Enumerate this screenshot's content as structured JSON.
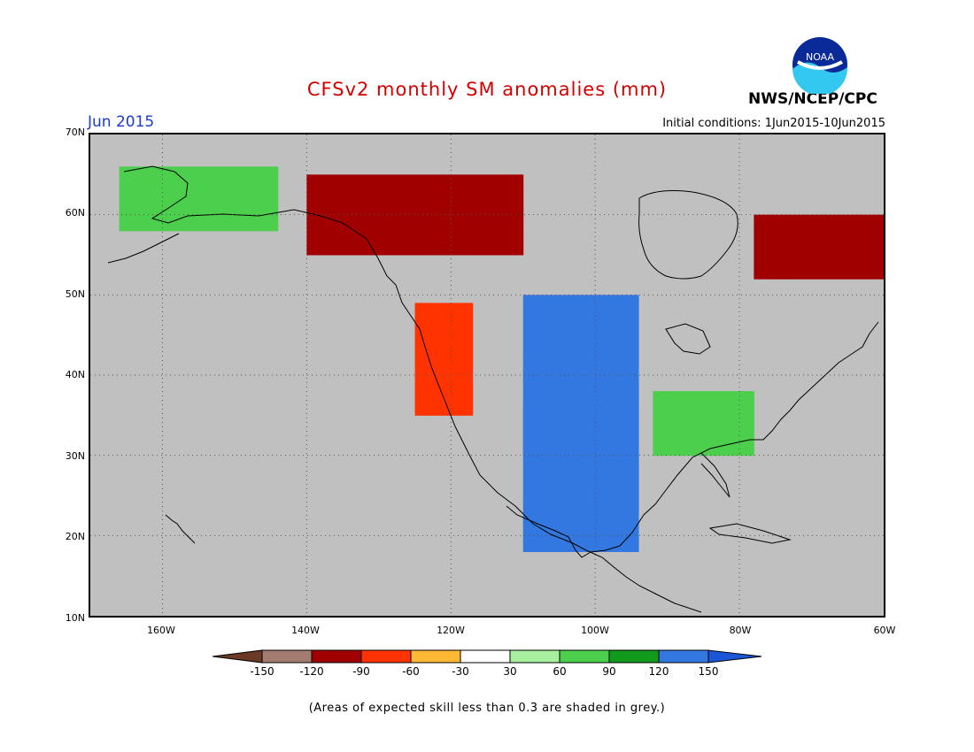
{
  "header": {
    "title": "CFSv2 monthly SM anomalies (mm)",
    "month": "Jun 2015",
    "initial_conditions": "Initial conditions: 1Jun2015-10Jun2015",
    "org": "NWS/NCEP/CPC",
    "logo_text": "NOAA"
  },
  "map": {
    "lat_range": [
      10,
      70
    ],
    "lon_range": [
      -170,
      -60
    ],
    "lat_labels": [
      "70N",
      "60N",
      "50N",
      "40N",
      "30N",
      "20N",
      "10N"
    ],
    "lon_labels": [
      "160W",
      "140W",
      "120W",
      "100W",
      "80W",
      "60W"
    ],
    "background_color": "#c0c0c0",
    "regions": [
      {
        "name": "alaska-positive",
        "bin": "90",
        "lat": [
          58,
          66
        ],
        "lon": [
          -166,
          -145
        ]
      },
      {
        "name": "yukon-dry",
        "bin": "-90",
        "lat": [
          55,
          65
        ],
        "lon": [
          -140,
          -110
        ]
      },
      {
        "name": "great-plains-wet",
        "bin": "150",
        "lat": [
          30,
          50
        ],
        "lon": [
          -110,
          -95
        ]
      },
      {
        "name": "texas-mexico-wet",
        "bin": "150",
        "lat": [
          18,
          35
        ],
        "lon": [
          -110,
          -95
        ]
      },
      {
        "name": "southeast-moist",
        "bin": "90",
        "lat": [
          30,
          38
        ],
        "lon": [
          -92,
          -78
        ]
      },
      {
        "name": "quebec-labrador-dry",
        "bin": "-90",
        "lat": [
          52,
          60
        ],
        "lon": [
          -78,
          -60
        ]
      },
      {
        "name": "west-coast-dry",
        "bin": "-60",
        "lat": [
          35,
          48
        ],
        "lon": [
          -125,
          -118
        ]
      }
    ]
  },
  "colorbar": {
    "labels": [
      "-150",
      "-120",
      "-90",
      "-60",
      "-30",
      "30",
      "60",
      "90",
      "120",
      "150"
    ],
    "colors": {
      "lt_-150": "#6b3a26",
      "-150_-120": "#a37b70",
      "-120_-90": "#a00000",
      "-90_-60": "#ff3300",
      "-60_-30": "#ffb833",
      "-30_30": "#ffffff",
      "30_60": "#a8f0a0",
      "60_90": "#4ccf4c",
      "90_120": "#129a1c",
      "120_150": "#3377e0",
      "gt_150": "#1a56d6"
    }
  },
  "footnote": "(Areas of expected skill less than 0.3 are shaded in grey.)"
}
